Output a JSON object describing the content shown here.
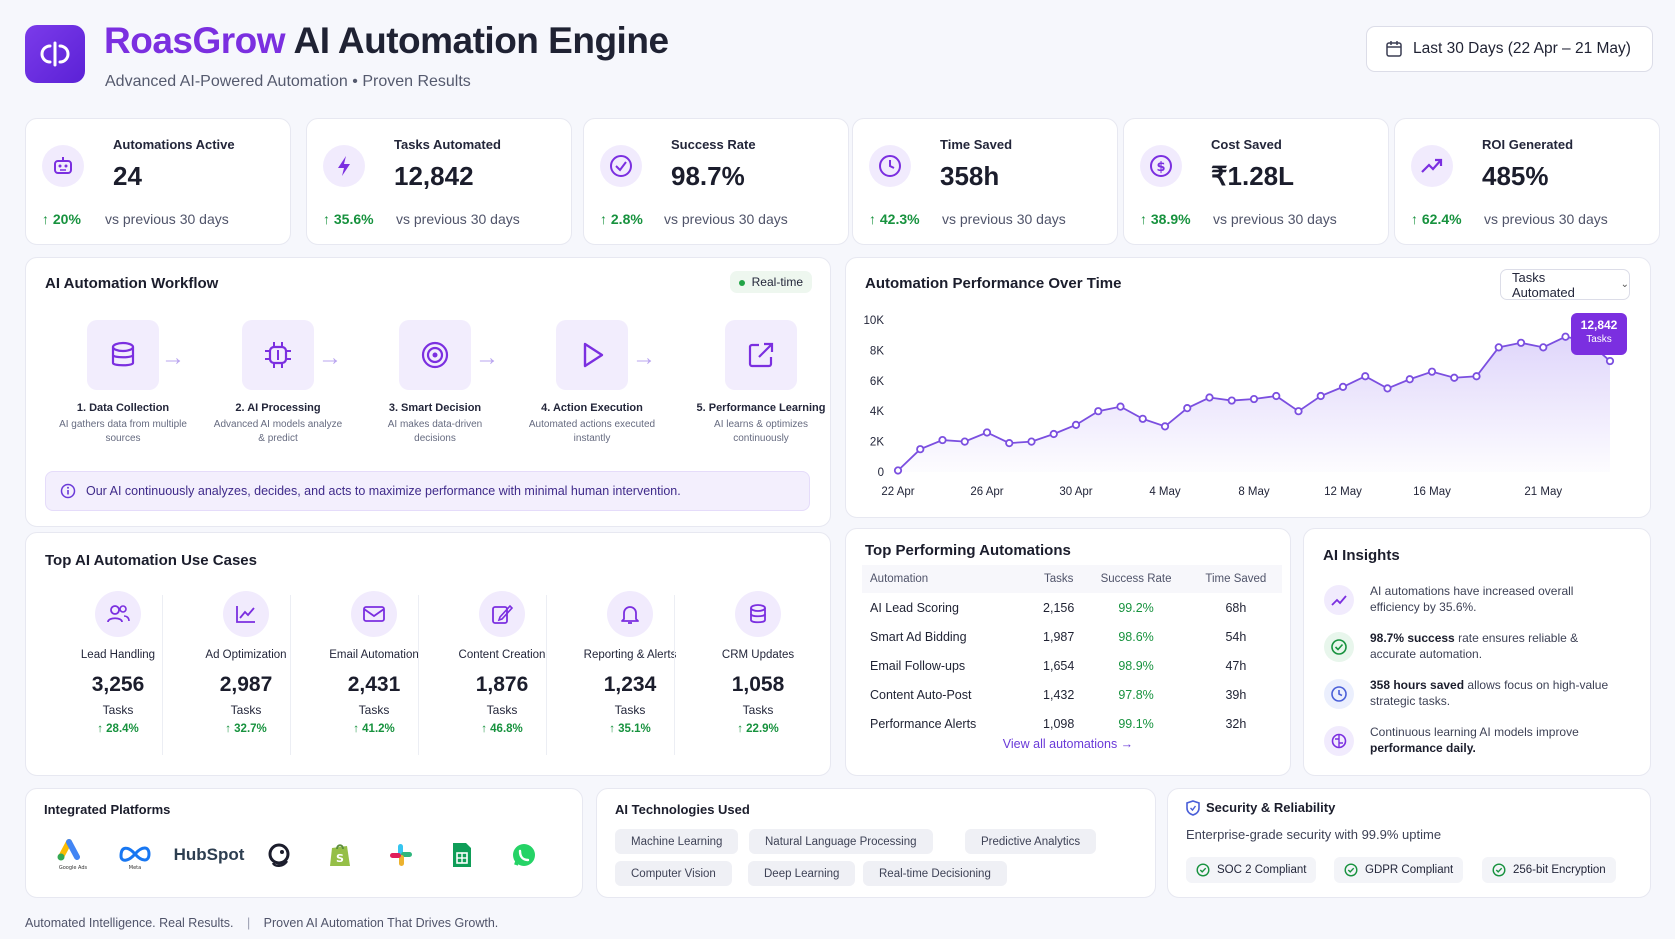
{
  "header": {
    "brand": "RoasGrow",
    "title": "AI Automation Engine",
    "subtitle": "Advanced AI-Powered Automation • Proven Results",
    "date_range": "Last 30 Days (22 Apr – 21 May)"
  },
  "kpis": [
    {
      "label": "Automations Active",
      "value": "24",
      "change": "↑ 20%",
      "compare": "vs previous 30 days",
      "icon": "robot-icon"
    },
    {
      "label": "Tasks Automated",
      "value": "12,842",
      "change": "↑ 35.6%",
      "compare": "vs previous 30 days",
      "icon": "bolt-icon"
    },
    {
      "label": "Success Rate",
      "value": "98.7%",
      "change": "↑ 2.8%",
      "compare": "vs previous 30 days",
      "icon": "check-circle-icon"
    },
    {
      "label": "Time Saved",
      "value": "358h",
      "change": "↑ 42.3%",
      "compare": "vs previous 30 days",
      "icon": "clock-icon"
    },
    {
      "label": "Cost Saved",
      "value": "₹1.28L",
      "change": "↑ 38.9%",
      "compare": "vs previous 30 days",
      "icon": "dollar-icon"
    },
    {
      "label": "ROI Generated",
      "value": "485%",
      "change": "↑ 62.4%",
      "compare": "vs previous 30 days",
      "icon": "trend-up-icon"
    }
  ],
  "workflow": {
    "title": "AI Automation Workflow",
    "badge": "Real-time",
    "steps": [
      {
        "name": "1. Data Collection",
        "desc": "AI gathers data from multiple sources"
      },
      {
        "name": "2. AI Processing",
        "desc": "Advanced AI models analyze & predict"
      },
      {
        "name": "3. Smart Decision",
        "desc": "AI makes data-driven decisions"
      },
      {
        "name": "4. Action Execution",
        "desc": "Automated actions executed instantly"
      },
      {
        "name": "5. Performance Learning",
        "desc": "AI learns & optimizes continuously"
      }
    ],
    "info": "Our AI continuously analyzes, decides, and acts to maximize performance with minimal human intervention."
  },
  "performance": {
    "title": "Automation Performance Over Time",
    "dropdown": "Tasks Automated",
    "tooltip_value": "12,842",
    "tooltip_label": "Tasks"
  },
  "chart_data": {
    "type": "area",
    "title": "Automation Performance Over Time",
    "ylim": [
      0,
      10000
    ],
    "yticks": [
      "0",
      "2K",
      "4K",
      "6K",
      "8K",
      "10K"
    ],
    "ytick_values": [
      0,
      2000,
      4000,
      6000,
      8000,
      10000
    ],
    "xticks": [
      "22 Apr",
      "26 Apr",
      "30 Apr",
      "4 May",
      "8 May",
      "12 May",
      "16 May",
      "21 May"
    ],
    "xtick_index": [
      0,
      4,
      8,
      12,
      16,
      20,
      24,
      29
    ],
    "series": [
      {
        "values": [
          100,
          1500,
          2100,
          2000,
          2600,
          1900,
          2000,
          2500,
          3100,
          4000,
          4300,
          3500,
          3000,
          4200,
          4900,
          4700,
          4800,
          5000,
          4000,
          5000,
          5600,
          6300,
          5500,
          6100,
          6600,
          6200,
          6300,
          8200,
          8500,
          8200,
          8900,
          8600,
          7300
        ]
      }
    ]
  },
  "use_cases": {
    "title": "Top AI Automation Use Cases",
    "items": [
      {
        "name": "Lead Handling",
        "value": "3,256",
        "unit": "Tasks",
        "change": "↑ 28.4%",
        "icon": "users-icon"
      },
      {
        "name": "Ad Optimization",
        "value": "2,987",
        "unit": "Tasks",
        "change": "↑ 32.7%",
        "icon": "chart-line-icon"
      },
      {
        "name": "Email Automation",
        "value": "2,431",
        "unit": "Tasks",
        "change": "↑ 41.2%",
        "icon": "mail-icon"
      },
      {
        "name": "Content Creation",
        "value": "1,876",
        "unit": "Tasks",
        "change": "↑ 46.8%",
        "icon": "edit-icon"
      },
      {
        "name": "Reporting & Alerts",
        "value": "1,234",
        "unit": "Tasks",
        "change": "↑ 35.1%",
        "icon": "bell-icon"
      },
      {
        "name": "CRM Updates",
        "value": "1,058",
        "unit": "Tasks",
        "change": "↑ 22.9%",
        "icon": "database-icon"
      }
    ]
  },
  "top_automations": {
    "title": "Top Performing Automations",
    "columns": [
      "Automation",
      "Tasks",
      "Success Rate",
      "Time Saved"
    ],
    "rows": [
      [
        "AI Lead Scoring",
        "2,156",
        "99.2%",
        "68h"
      ],
      [
        "Smart Ad Bidding",
        "1,987",
        "98.6%",
        "54h"
      ],
      [
        "Email Follow-ups",
        "1,654",
        "98.9%",
        "47h"
      ],
      [
        "Content Auto-Post",
        "1,432",
        "97.8%",
        "39h"
      ],
      [
        "Performance Alerts",
        "1,098",
        "99.1%",
        "32h"
      ]
    ],
    "view_all": "View all automations →"
  },
  "insights": {
    "title": "AI Insights",
    "items": [
      {
        "pre": "AI automations have increased overall efficiency by 35.6%.",
        "bold": "",
        "post": "",
        "icon": "trend-up-icon"
      },
      {
        "pre": "",
        "bold": "98.7% success",
        "post": " rate ensures reliable & accurate automation.",
        "icon": "check-circle-icon"
      },
      {
        "pre": "",
        "bold": "358 hours saved",
        "post": " allows focus on high-value strategic tasks.",
        "icon": "clock-icon"
      },
      {
        "pre": "Continuous learning AI models improve ",
        "bold": "performance daily.",
        "post": "",
        "icon": "brain-icon"
      }
    ]
  },
  "platforms": {
    "title": "Integrated Platforms",
    "items": [
      {
        "name": "Google Ads",
        "label": "Google Ads"
      },
      {
        "name": "Meta",
        "label": "Meta"
      },
      {
        "name": "HubSpot",
        "label": "HubSpot"
      },
      {
        "name": "Mailchimp",
        "label": ""
      },
      {
        "name": "Shopify",
        "label": ""
      },
      {
        "name": "Slack",
        "label": ""
      },
      {
        "name": "Google Sheets",
        "label": ""
      },
      {
        "name": "WhatsApp",
        "label": ""
      }
    ]
  },
  "technologies": {
    "title": "AI Technologies Used",
    "chips": [
      "Machine Learning",
      "Natural Language Processing",
      "Predictive Analytics",
      "Computer Vision",
      "Deep Learning",
      "Real-time Decisioning"
    ]
  },
  "security": {
    "title": "Security & Reliability",
    "subtitle": "Enterprise-grade security with 99.9% uptime",
    "certs": [
      "SOC 2 Compliant",
      "GDPR Compliant",
      "256-bit Encryption"
    ]
  },
  "footer": {
    "left": "Automated Intelligence. Real Results.",
    "sep": "|",
    "right": "Proven AI Automation That Drives Growth."
  },
  "colors": {
    "accent": "#7b2fe0",
    "positive": "#17923e",
    "chart_line": "#7b4fe0"
  }
}
